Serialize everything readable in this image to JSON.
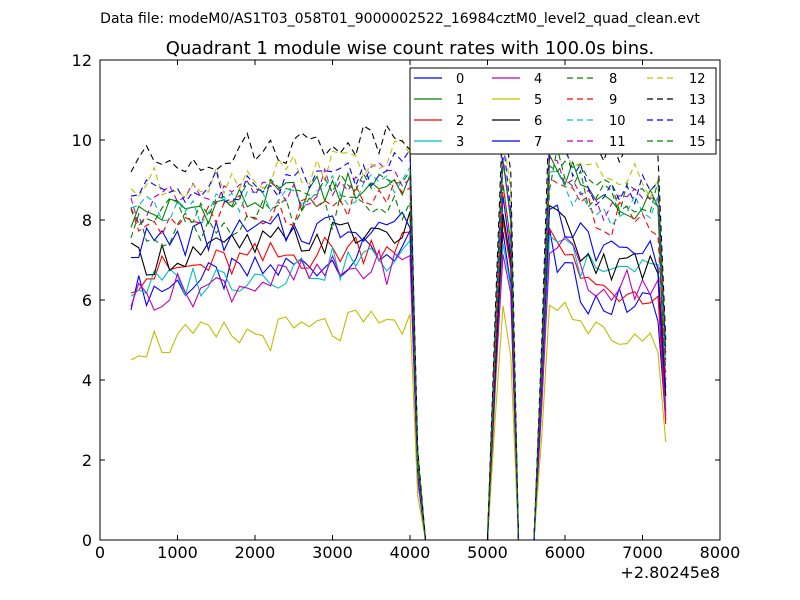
{
  "chart_data": {
    "type": "line",
    "suptitle": "Data file: modeM0/AS1T03_058T01_9000002522_16984cztM0_level2_quad_clean.evt",
    "title": "Quadrant 1 module wise count rates with 100.0s bins.",
    "xlabel": "",
    "ylabel": "",
    "x_offset_label": "+2.80245e8",
    "xlim": [
      0,
      8000
    ],
    "ylim": [
      0,
      12
    ],
    "xticks": [
      0,
      1000,
      2000,
      3000,
      4000,
      5000,
      6000,
      7000,
      8000
    ],
    "yticks": [
      0,
      2,
      4,
      6,
      8,
      10,
      12
    ],
    "grid": false,
    "legend_position": "top-right",
    "legend_columns": 4,
    "x_segments": [
      {
        "start": 400,
        "end": 4000,
        "step": 100
      },
      {
        "start": 4100,
        "end": 5800,
        "step": 100
      },
      {
        "start": 5800,
        "end": 7300,
        "step": 100
      }
    ],
    "gap_profile": {
      "x": [
        4100,
        4200,
        4300,
        4400,
        4500,
        4600,
        4700,
        4800,
        4900,
        5000,
        5100,
        5200,
        5300,
        5400,
        5500,
        5600,
        5700,
        5800
      ],
      "y": [
        2.0,
        0,
        0,
        0,
        0,
        0,
        0,
        0,
        0,
        0,
        5.0,
        9.5,
        8.0,
        0,
        0,
        0,
        4.5,
        9.5
      ]
    },
    "series": [
      {
        "name": "0",
        "color": "#0000ff",
        "dash": "solid",
        "level1": 6.2,
        "level2": 7.3,
        "level3": 5.9,
        "end": 3.0
      },
      {
        "name": "1",
        "color": "#008000",
        "dash": "solid",
        "level1": 8.1,
        "level2": 9.0,
        "level3": 8.4,
        "end": 3.2
      },
      {
        "name": "2",
        "color": "#ff0000",
        "dash": "solid",
        "level1": 6.6,
        "level2": 7.5,
        "level3": 6.3,
        "end": 2.9
      },
      {
        "name": "3",
        "color": "#00bfbf",
        "dash": "solid",
        "level1": 6.3,
        "level2": 7.1,
        "level3": 6.6,
        "end": 3.4
      },
      {
        "name": "4",
        "color": "#bf00bf",
        "dash": "solid",
        "level1": 6.1,
        "level2": 6.9,
        "level3": 6.4,
        "end": 3.1
      },
      {
        "name": "5",
        "color": "#bfbf00",
        "dash": "solid",
        "level1": 4.9,
        "level2": 5.4,
        "level3": 5.1,
        "end": 2.45
      },
      {
        "name": "6",
        "color": "#000000",
        "dash": "solid",
        "level1": 7.0,
        "level2": 7.8,
        "level3": 6.9,
        "end": 3.6
      },
      {
        "name": "7",
        "color": "#0000ff",
        "dash": "solid",
        "level1": 7.4,
        "level2": 8.0,
        "level3": 7.2,
        "end": 3.8
      },
      {
        "name": "8",
        "color": "#008000",
        "dash": "dashed",
        "level1": 7.7,
        "level2": 8.4,
        "level3": 8.5,
        "end": 4.2
      },
      {
        "name": "9",
        "color": "#ff0000",
        "dash": "dashed",
        "level1": 7.9,
        "level2": 8.6,
        "level3": 8.0,
        "end": 4.0
      },
      {
        "name": "10",
        "color": "#00bfbf",
        "dash": "dashed",
        "level1": 8.1,
        "level2": 8.9,
        "level3": 8.2,
        "end": 4.4
      },
      {
        "name": "11",
        "color": "#bf00bf",
        "dash": "dashed",
        "level1": 8.3,
        "level2": 9.1,
        "level3": 8.4,
        "end": 4.6
      },
      {
        "name": "12",
        "color": "#bfbf00",
        "dash": "dashed",
        "level1": 8.8,
        "level2": 9.6,
        "level3": 9.0,
        "end": 4.8
      },
      {
        "name": "13",
        "color": "#000000",
        "dash": "dashed",
        "level1": 9.4,
        "level2": 10.2,
        "level3": 9.6,
        "end": 5.0
      },
      {
        "name": "14",
        "color": "#0000ff",
        "dash": "dashed",
        "level1": 8.6,
        "level2": 9.4,
        "level3": 8.8,
        "end": 4.7
      },
      {
        "name": "15",
        "color": "#008000",
        "dash": "dashed",
        "level1": 8.2,
        "level2": 9.0,
        "level3": 8.6,
        "end": 4.5
      }
    ]
  }
}
